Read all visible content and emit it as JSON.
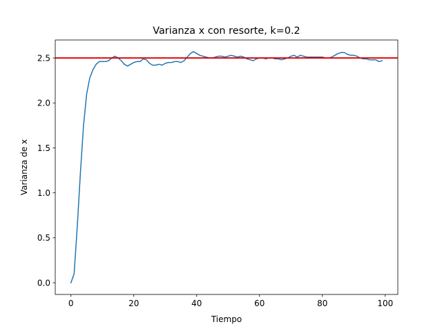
{
  "chart_data": {
    "type": "line",
    "title": "Varianza x con resorte, k=0.2",
    "xlabel": "Tiempo",
    "ylabel": "Varianza de x",
    "xlim": [
      -5,
      104
    ],
    "ylim": [
      -0.13,
      2.7
    ],
    "xticks": [
      0,
      20,
      40,
      60,
      80,
      100
    ],
    "yticks": [
      0.0,
      0.5,
      1.0,
      1.5,
      2.0,
      2.5
    ],
    "xtick_labels": [
      "0",
      "20",
      "40",
      "60",
      "80",
      "100"
    ],
    "ytick_labels": [
      "0.0",
      "0.5",
      "1.0",
      "1.5",
      "2.0",
      "2.5"
    ],
    "grid": false,
    "legend": "none",
    "series": [
      {
        "color": "#1f77b4",
        "x": [
          0,
          1,
          2,
          3,
          4,
          5,
          6,
          7,
          8,
          9,
          10,
          11,
          12,
          13,
          14,
          15,
          16,
          17,
          18,
          19,
          20,
          21,
          22,
          23,
          24,
          25,
          26,
          27,
          28,
          29,
          30,
          31,
          32,
          33,
          34,
          35,
          36,
          37,
          38,
          39,
          40,
          41,
          42,
          43,
          44,
          45,
          46,
          47,
          48,
          49,
          50,
          51,
          52,
          53,
          54,
          55,
          56,
          57,
          58,
          59,
          60,
          61,
          62,
          63,
          64,
          65,
          66,
          67,
          68,
          69,
          70,
          71,
          72,
          73,
          74,
          75,
          76,
          77,
          78,
          79,
          80,
          81,
          82,
          83,
          84,
          85,
          86,
          87,
          88,
          89,
          90,
          91,
          92,
          93,
          94,
          95,
          96,
          97,
          98,
          99
        ],
        "y": [
          0.0,
          0.1,
          0.62,
          1.22,
          1.75,
          2.1,
          2.28,
          2.37,
          2.43,
          2.46,
          2.46,
          2.46,
          2.47,
          2.5,
          2.52,
          2.5,
          2.47,
          2.43,
          2.41,
          2.43,
          2.45,
          2.46,
          2.46,
          2.49,
          2.48,
          2.44,
          2.42,
          2.42,
          2.43,
          2.42,
          2.44,
          2.45,
          2.45,
          2.46,
          2.46,
          2.45,
          2.47,
          2.51,
          2.55,
          2.57,
          2.55,
          2.53,
          2.52,
          2.51,
          2.5,
          2.5,
          2.51,
          2.52,
          2.52,
          2.51,
          2.52,
          2.53,
          2.52,
          2.51,
          2.52,
          2.51,
          2.49,
          2.48,
          2.47,
          2.49,
          2.5,
          2.5,
          2.49,
          2.5,
          2.5,
          2.49,
          2.49,
          2.48,
          2.49,
          2.5,
          2.52,
          2.53,
          2.51,
          2.53,
          2.52,
          2.51,
          2.51,
          2.51,
          2.51,
          2.51,
          2.51,
          2.5,
          2.5,
          2.51,
          2.53,
          2.55,
          2.56,
          2.56,
          2.54,
          2.53,
          2.53,
          2.52,
          2.5,
          2.49,
          2.49,
          2.48,
          2.48,
          2.48,
          2.46,
          2.47
        ]
      }
    ],
    "reference_line": {
      "y": 2.5,
      "color": "#e00000"
    }
  }
}
